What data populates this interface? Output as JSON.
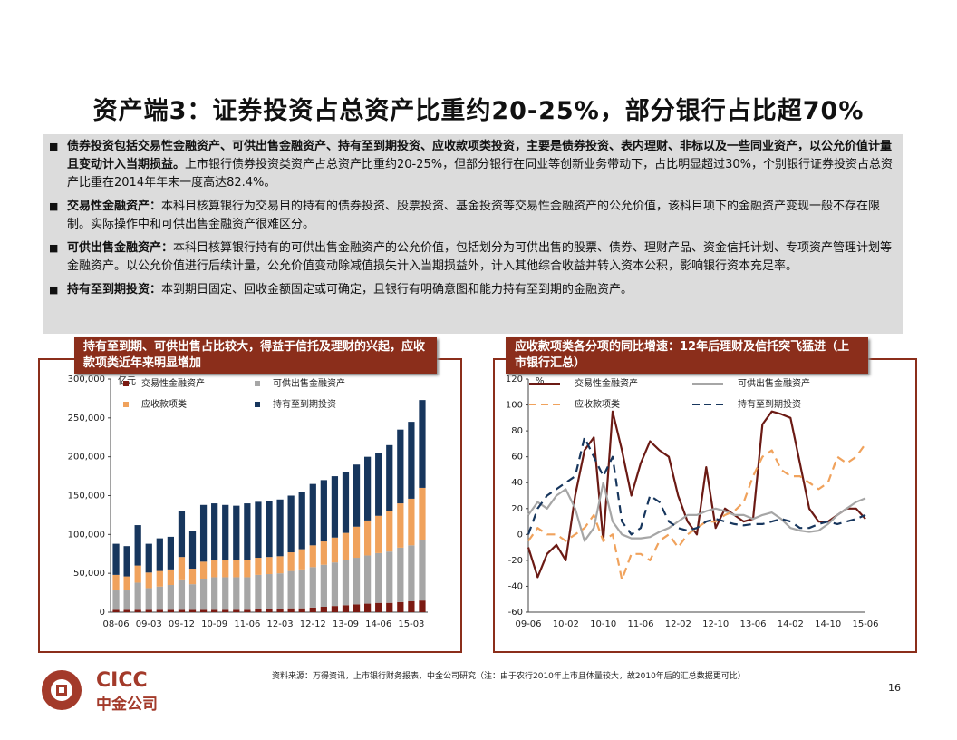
{
  "slide": {
    "title": "资产端3：证券投资占总资产比重约20-25%，部分银行占比超70%",
    "bullets": [
      {
        "bold": "债券投资包括交易性金融资产、可供出售金融资产、持有至到期投资、应收款项类投资，主要是债券投资、表内理财、非标以及一些同业资产，以公允价值计量且变动计入当期损益。",
        "text": "上市银行债券投资类资产占总资产比重约20-25%，但部分银行在同业等创新业务带动下，占比明显超过30%，个别银行证券投资占总资产比重在2014年年末一度高达82.4%。"
      },
      {
        "bold": "交易性金融资产：",
        "text": "本科目核算银行为交易目的持有的债券投资、股票投资、基金投资等交易性金融资产的公允价值，该科目项下的金融资产变现一般不存在限制。实际操作中和可供出售金融资产很难区分。"
      },
      {
        "bold": "可供出售金融资产：",
        "text": "本科目核算银行持有的可供出售金融资产的公允价值，包括划分为可供出售的股票、债券、理财产品、资金信托计划、专项资产管理计划等金融资产。以公允价值进行后续计量，公允价值变动除减值损失计入当期损益外，计入其他综合收益并转入资本公积，影响银行资本充足率。"
      },
      {
        "bold": "持有至到期投资：",
        "text": "本到期日固定、回收金额固定或可确定，且银行有明确意图和能力持有至到期的金融资产。"
      }
    ],
    "source": "资料来源：万得资讯，上市银行财务报表，中金公司研究（注：由于农行2010年上市且体量较大，故2010年后的汇总数据更可比）",
    "page": "16",
    "logo": "CICC",
    "logo_cn": "中金公司"
  },
  "chart_data": [
    {
      "type": "bar",
      "stacked": true,
      "title": "持有至到期、可供出售占比较大，得益于信托及理财的兴起，应收款项类近年来明显增加",
      "unit": "亿元",
      "categories": [
        "08-06",
        null,
        null,
        "09-03",
        null,
        null,
        "09-12",
        null,
        null,
        "10-09",
        null,
        null,
        "11-06",
        null,
        null,
        "12-03",
        null,
        null,
        "12-12",
        null,
        null,
        "13-09",
        null,
        null,
        "14-06",
        null,
        null,
        "15-03",
        null
      ],
      "series": [
        {
          "name": "交易性金融资产",
          "color": "#7b1a12",
          "values": [
            3000,
            3000,
            3000,
            3000,
            3000,
            3000,
            3000,
            3000,
            3000,
            3000,
            3000,
            3000,
            3000,
            4000,
            4000,
            4000,
            5000,
            5000,
            6000,
            7000,
            8000,
            9000,
            10000,
            11000,
            12000,
            12000,
            13000,
            14000,
            15000
          ]
        },
        {
          "name": "可供出售金融资产",
          "color": "#a6a6a6",
          "values": [
            25000,
            25000,
            35000,
            28000,
            30000,
            32000,
            38000,
            33000,
            40000,
            42000,
            42000,
            42000,
            42000,
            44000,
            45000,
            46000,
            48000,
            50000,
            52000,
            54000,
            56000,
            58000,
            60000,
            62000,
            64000,
            66000,
            70000,
            72000,
            78000
          ]
        },
        {
          "name": "应收款项类",
          "color": "#f0a25c",
          "values": [
            20000,
            18000,
            22000,
            20000,
            20000,
            20000,
            30000,
            20000,
            22000,
            22000,
            22000,
            22000,
            22000,
            22000,
            22000,
            22000,
            24000,
            26000,
            28000,
            30000,
            32000,
            35000,
            40000,
            45000,
            48000,
            52000,
            57000,
            60000,
            67000
          ]
        },
        {
          "name": "持有至到期投资",
          "color": "#17365d",
          "values": [
            40000,
            39000,
            52000,
            37000,
            42000,
            42000,
            59000,
            49000,
            73000,
            73000,
            71000,
            70000,
            73000,
            72000,
            72000,
            73000,
            73000,
            74000,
            79000,
            79000,
            79000,
            78000,
            80000,
            82000,
            81000,
            85000,
            95000,
            99000,
            113000
          ]
        }
      ],
      "ylim": [
        0,
        300000
      ],
      "yticks": [
        0,
        {
          "value": 50000,
          "label": "50,000"
        },
        {
          "value": 100000,
          "label": "100,000"
        },
        {
          "value": 150000,
          "label": "150,000"
        },
        {
          "value": 200000,
          "label": "200,000"
        },
        {
          "value": 250000,
          "label": "250,000"
        },
        {
          "value": 300000,
          "label": "300,000"
        }
      ]
    },
    {
      "type": "line",
      "title": "应收款项类各分项的同比增速：12年后理财及信托突飞猛进（上市银行汇总）",
      "unit": "%",
      "categories": [
        "09-06",
        null,
        null,
        null,
        "10-02",
        null,
        null,
        null,
        "10-10",
        null,
        null,
        null,
        "11-06",
        null,
        null,
        null,
        "12-02",
        null,
        null,
        null,
        "12-10",
        null,
        null,
        null,
        "13-06",
        null,
        null,
        null,
        "14-02",
        null,
        null,
        null,
        "14-10",
        null,
        null,
        null,
        "15-06"
      ],
      "series": [
        {
          "name": "交易性金融资产",
          "color": "#6b1a14",
          "style": "solid",
          "values": [
            -10,
            -33,
            -15,
            -8,
            -20,
            30,
            65,
            75,
            -5,
            95,
            65,
            30,
            55,
            72,
            65,
            60,
            30,
            10,
            0,
            52,
            5,
            20,
            15,
            10,
            12,
            85,
            95,
            93,
            90,
            55,
            20,
            10,
            10,
            15,
            20,
            20,
            12
          ]
        },
        {
          "name": "可供出售金融资产",
          "color": "#a6a6a6",
          "style": "solid",
          "values": [
            15,
            25,
            20,
            30,
            35,
            20,
            -5,
            5,
            40,
            10,
            0,
            -3,
            -3,
            -2,
            2,
            5,
            10,
            15,
            15,
            18,
            20,
            18,
            15,
            15,
            12,
            15,
            17,
            12,
            5,
            3,
            2,
            3,
            8,
            15,
            20,
            25,
            28
          ]
        },
        {
          "name": "应收款项类",
          "color": "#f0a25c",
          "style": "dashed",
          "values": [
            -5,
            5,
            0,
            0,
            -5,
            0,
            5,
            15,
            -5,
            0,
            -35,
            -15,
            -15,
            -20,
            -5,
            0,
            -10,
            0,
            5,
            10,
            10,
            15,
            18,
            25,
            45,
            60,
            65,
            50,
            45,
            45,
            40,
            35,
            40,
            60,
            55,
            60,
            70
          ]
        },
        {
          "name": "持有至到期投资",
          "color": "#17365d",
          "style": "dashed",
          "values": [
            0,
            20,
            30,
            35,
            40,
            45,
            75,
            60,
            45,
            60,
            10,
            0,
            5,
            30,
            25,
            10,
            5,
            3,
            5,
            10,
            12,
            10,
            8,
            7,
            8,
            8,
            10,
            12,
            10,
            5,
            5,
            8,
            10,
            8,
            10,
            12,
            15
          ]
        }
      ],
      "ylim": [
        -60,
        120
      ],
      "yticks": [
        -60,
        -40,
        -20,
        0,
        20,
        40,
        60,
        80,
        100,
        120
      ]
    }
  ]
}
